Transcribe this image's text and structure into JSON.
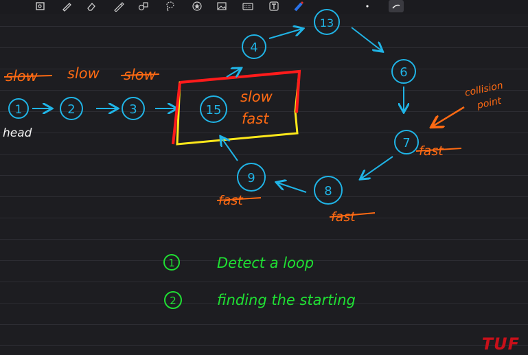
{
  "toolbar": {
    "tools": [
      {
        "name": "lasso-select-icon"
      },
      {
        "name": "pen-icon"
      },
      {
        "name": "eraser-icon"
      },
      {
        "name": "pencil-icon"
      },
      {
        "name": "shapes-icon"
      },
      {
        "name": "lasso-icon"
      },
      {
        "name": "sticker-icon"
      },
      {
        "name": "image-icon"
      },
      {
        "name": "keyboard-icon"
      },
      {
        "name": "text-icon"
      },
      {
        "name": "highlighter-icon"
      },
      {
        "name": "color-dot-icon"
      },
      {
        "name": "pen-thickness-icon"
      }
    ]
  },
  "nodes": {
    "n1": "1",
    "n2": "2",
    "n3": "3",
    "n15": "15",
    "n4": "4",
    "n13": "13",
    "n6": "6",
    "n7": "7",
    "n8": "8",
    "n9": "9"
  },
  "labels": {
    "slow1": "slow",
    "slow2": "slow",
    "slow3": "slow",
    "head": "head",
    "box_slow": "slow",
    "box_fast": "fast",
    "collision": "collision",
    "point": "point",
    "fast7": "fast",
    "fast8": "fast",
    "fast9": "fast"
  },
  "notes": {
    "item1_num": "1",
    "item1_text": "Detect a loop",
    "item2_num": "2",
    "item2_text": "finding the starting"
  },
  "watermark": "TUF",
  "colors": {
    "node": "#20b4e6",
    "orange": "#ff6a13",
    "green": "#1fe033",
    "white": "#f2f2f2",
    "box_red": "#ff1b1b",
    "box_yellow": "#ffe81a"
  }
}
